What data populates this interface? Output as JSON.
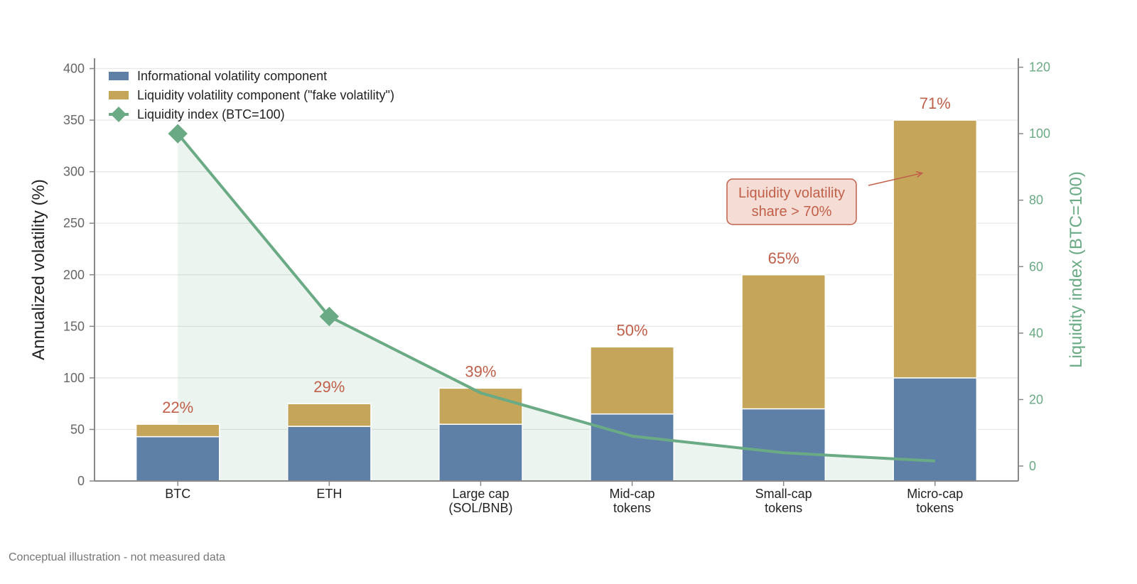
{
  "chart_data": {
    "type": "bar",
    "stacked": true,
    "categories": [
      [
        "BTC"
      ],
      [
        "ETH"
      ],
      [
        "Large cap",
        "(SOL/BNB)"
      ],
      [
        "Mid-cap",
        "tokens"
      ],
      [
        "Small-cap",
        "tokens"
      ],
      [
        "Micro-cap",
        "tokens"
      ]
    ],
    "series": [
      {
        "name": "Informational volatility component",
        "values": [
          43,
          53,
          55,
          65,
          70,
          100
        ],
        "color": "#5f80a6"
      },
      {
        "name": "Liquidity volatility component (\"fake volatility\")",
        "values": [
          12,
          22,
          35,
          65,
          130,
          250
        ],
        "color": "#c4a55a"
      }
    ],
    "line_series": {
      "name": "Liquidity index (BTC=100)",
      "values": [
        100,
        45,
        22,
        9,
        4,
        1.5
      ],
      "color": "#6aaa84",
      "axis": "right"
    },
    "share_labels": [
      "22%",
      "29%",
      "39%",
      "50%",
      "65%",
      "71%"
    ],
    "share_color": "#c0604a",
    "ylabel": "Annualized volatility (%)",
    "ylabel_right": "Liquidity index (BTC=100)",
    "ylim": [
      0,
      410
    ],
    "yticks": [
      0,
      50,
      100,
      150,
      200,
      250,
      300,
      350,
      400
    ],
    "ylim_right": [
      -4.5,
      122.7
    ],
    "yticks_right": [
      0,
      20,
      40,
      60,
      80,
      100,
      120
    ],
    "grid": true,
    "legend_position": "top-left",
    "annotation": {
      "lines": [
        "Liquidity volatility",
        "share > 70%"
      ],
      "target_category_index": 5,
      "target_value": 300
    }
  },
  "footnote": "Conceptual illustration - not measured data"
}
